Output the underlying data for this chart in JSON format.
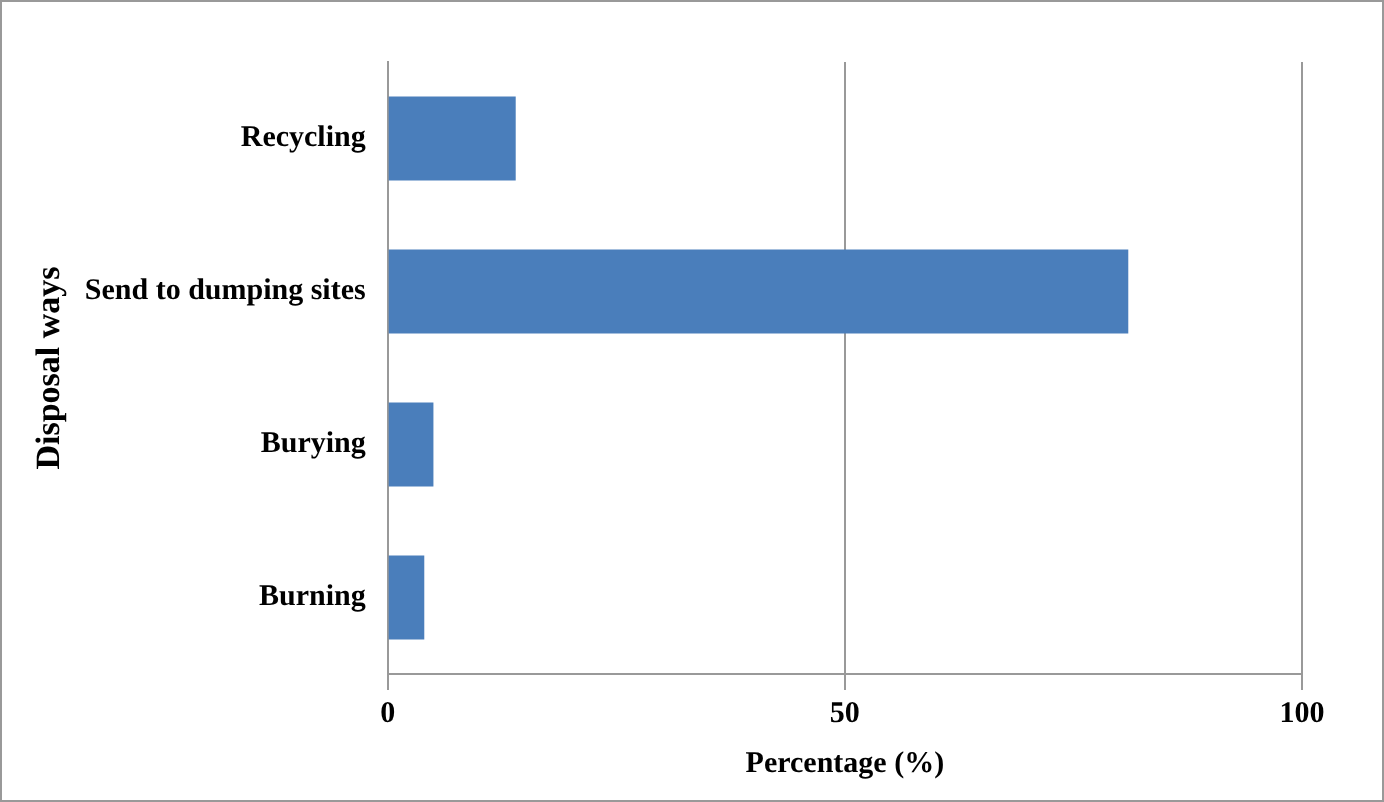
{
  "chart_data": {
    "type": "bar",
    "orientation": "horizontal",
    "categories": [
      "Recycling",
      "Send to dumping sites",
      "Burying",
      "Burning"
    ],
    "values": [
      14,
      81,
      5,
      4
    ],
    "color": "#4a7ebb",
    "xlabel": "Percentage (%)",
    "ylabel": "Disposal ways",
    "xlim": [
      0,
      100
    ],
    "xticks": [
      0,
      50,
      100
    ],
    "grid": "x",
    "legend": false
  }
}
